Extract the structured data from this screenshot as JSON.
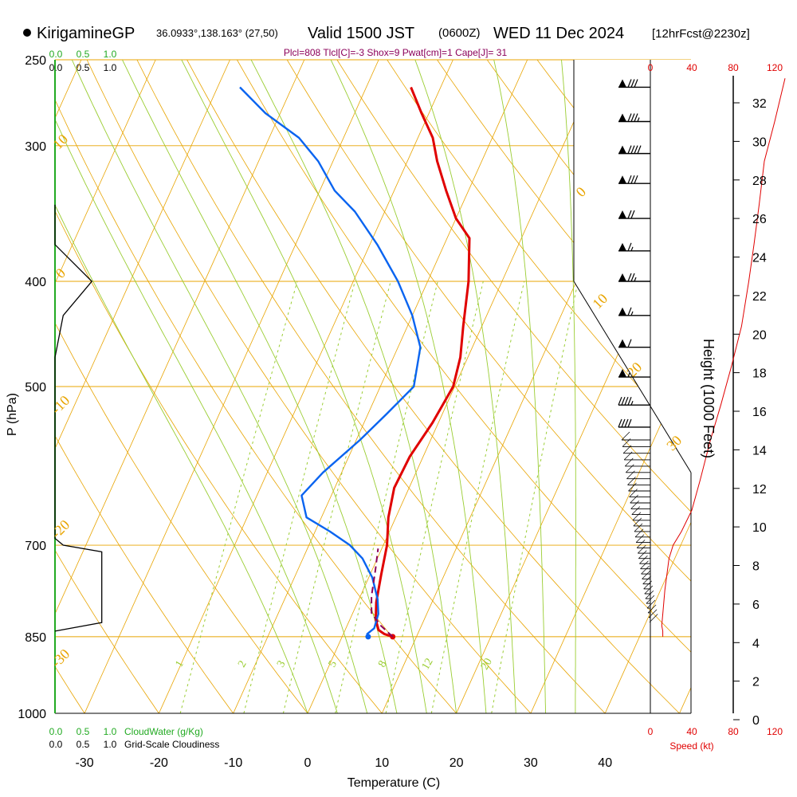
{
  "header": {
    "station": "KirigamineGP",
    "coords": "36.0933°,138.163° (27,50)",
    "valid_a": "Valid 1500 JST",
    "valid_z": "(0600Z)",
    "valid_b": "WED 11 Dec 2024",
    "forecast": "[12hrFcst@2230z]",
    "indices": "Plcl=808 Tlcl[C]=-3 Shox=9 Pwat[cm]=1 Cape[J]= 31"
  },
  "colors": {
    "temperature": "#e00000",
    "dewpoint": "#0a64f0",
    "parcel": "#8b005a",
    "isotherm": "#e8a400",
    "mixing_ratio": "#9acd32",
    "cloud_water": "#22aa22",
    "wind_speed": "#e00000"
  },
  "chart_data": {
    "type": "line",
    "xlabel": "Temperature (C)",
    "ylabel": "P (hPa)",
    "right_label": "Height (1000 Feet)",
    "x_ticks": [
      -30,
      -20,
      -10,
      0,
      10,
      20,
      30,
      40
    ],
    "pressure_ticks": [
      250,
      300,
      400,
      500,
      700,
      850,
      1000
    ],
    "height_ticks": [
      0,
      2,
      4,
      6,
      8,
      10,
      12,
      14,
      16,
      18,
      20,
      22,
      24,
      26,
      28,
      30,
      32
    ],
    "dry_adiabat_labels": [
      "10",
      "0",
      "-10",
      "-20",
      "-30",
      "0",
      "10",
      "20",
      "30"
    ],
    "mixing_ratio_labels": [
      "1",
      "2",
      "3",
      "5",
      "8",
      "12",
      "20"
    ],
    "cloudwater_ticks_top": [
      "0.0",
      "0.5",
      "1.0"
    ],
    "cloudiness_ticks_top": [
      "0.0",
      "0.5",
      "1.0"
    ],
    "cloudwater_ticks_bottom": [
      "0.0",
      "0.5",
      "1.0"
    ],
    "cloudiness_ticks_bottom": [
      "0.0",
      "0.5",
      "1.0"
    ],
    "cloudwater_label": "CloudWater (g/Kg)",
    "cloudiness_label": "Grid-Scale Cloudiness",
    "speed_ticks": [
      "0",
      "40",
      "80",
      "120"
    ],
    "speed_label": "Speed (kt)",
    "series": [
      {
        "name": "temperature",
        "points": [
          [
            6.8,
            850
          ],
          [
            5.5,
            845
          ],
          [
            4.5,
            838
          ],
          [
            3.5,
            820
          ],
          [
            2.5,
            790
          ],
          [
            1.5,
            745
          ],
          [
            0.5,
            700
          ],
          [
            -1,
            660
          ],
          [
            -2,
            620
          ],
          [
            -1.8,
            580
          ],
          [
            -0.8,
            540
          ],
          [
            -0.2,
            500
          ],
          [
            -1,
            470
          ],
          [
            -2.5,
            440
          ],
          [
            -4.5,
            400
          ],
          [
            -7,
            365
          ],
          [
            -10,
            350
          ],
          [
            -13,
            330
          ],
          [
            -16,
            310
          ],
          [
            -18,
            295
          ],
          [
            -21,
            280
          ],
          [
            -24,
            265
          ]
        ]
      },
      {
        "name": "dewpoint",
        "points": [
          [
            3.5,
            850
          ],
          [
            3.2,
            845
          ],
          [
            3.8,
            835
          ],
          [
            3.5,
            810
          ],
          [
            2.5,
            785
          ],
          [
            0.5,
            750
          ],
          [
            -2,
            720
          ],
          [
            -4.5,
            700
          ],
          [
            -8,
            680
          ],
          [
            -12,
            660
          ],
          [
            -14,
            630
          ],
          [
            -12.5,
            600
          ],
          [
            -9.5,
            560
          ],
          [
            -7.5,
            530
          ],
          [
            -5.5,
            500
          ],
          [
            -7,
            460
          ],
          [
            -10,
            430
          ],
          [
            -14,
            400
          ],
          [
            -19,
            370
          ],
          [
            -24,
            345
          ],
          [
            -28,
            330
          ],
          [
            -32,
            310
          ],
          [
            -36,
            295
          ],
          [
            -42,
            280
          ],
          [
            -47,
            265
          ]
        ]
      },
      {
        "name": "parcel",
        "points": [
          [
            6.8,
            850
          ],
          [
            4.5,
            830
          ],
          [
            2.5,
            808
          ],
          [
            1.5,
            780
          ],
          [
            0.5,
            740
          ],
          [
            -0.5,
            705
          ]
        ]
      }
    ],
    "cloudwater_profile": [
      [
        0,
        250
      ],
      [
        0,
        1000
      ]
    ],
    "cloudiness_profile": [
      [
        0,
        340
      ],
      [
        0,
        370
      ],
      [
        0.67,
        400
      ],
      [
        0.15,
        430
      ],
      [
        0,
        470
      ],
      [
        0,
        690
      ],
      [
        0.15,
        700
      ],
      [
        0.85,
        710
      ],
      [
        0.85,
        825
      ],
      [
        0,
        840
      ]
    ],
    "wind_speed_profile": [
      [
        12,
        850
      ],
      [
        12,
        840
      ],
      [
        11,
        830
      ],
      [
        12,
        810
      ],
      [
        14,
        770
      ],
      [
        18,
        720
      ],
      [
        22,
        700
      ],
      [
        30,
        680
      ],
      [
        40,
        650
      ],
      [
        48,
        610
      ],
      [
        58,
        560
      ],
      [
        68,
        520
      ],
      [
        78,
        480
      ],
      [
        88,
        440
      ],
      [
        95,
        400
      ],
      [
        100,
        370
      ],
      [
        105,
        340
      ],
      [
        110,
        310
      ],
      [
        120,
        285
      ],
      [
        130,
        260
      ]
    ],
    "wind_barbs": [
      {
        "pressure": 265,
        "speed_kt": 80
      },
      {
        "pressure": 285,
        "speed_kt": 85
      },
      {
        "pressure": 305,
        "speed_kt": 90
      },
      {
        "pressure": 325,
        "speed_kt": 80
      },
      {
        "pressure": 350,
        "speed_kt": 70
      },
      {
        "pressure": 375,
        "speed_kt": 65
      },
      {
        "pressure": 400,
        "speed_kt": 75
      },
      {
        "pressure": 430,
        "speed_kt": 65
      },
      {
        "pressure": 460,
        "speed_kt": 60
      },
      {
        "pressure": 490,
        "speed_kt": 55
      },
      {
        "pressure": 520,
        "speed_kt": 45
      },
      {
        "pressure": 545,
        "speed_kt": 40
      }
    ]
  }
}
